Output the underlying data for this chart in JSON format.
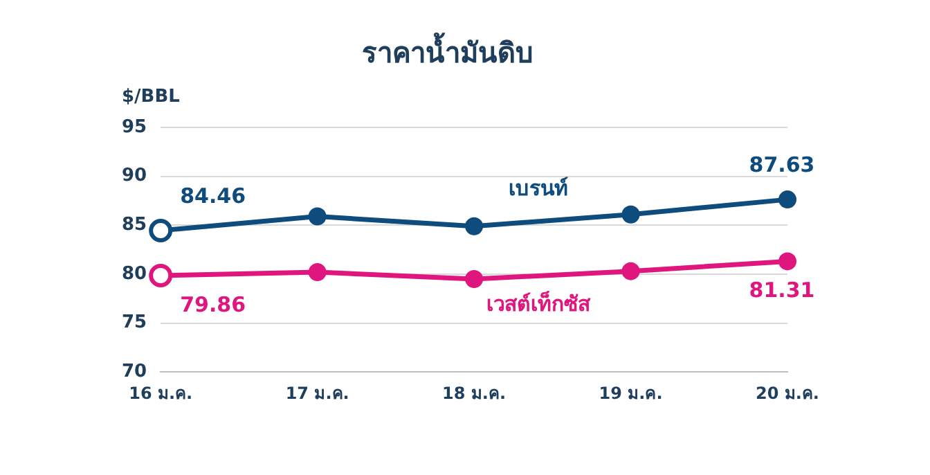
{
  "chart_data": {
    "type": "line",
    "title": "ราคาน้ำมันดิบ",
    "ylabel": "$/BBL",
    "categories": [
      "16 ม.ค.",
      "17 ม.ค.",
      "18 ม.ค.",
      "19 ม.ค.",
      "20 ม.ค."
    ],
    "series": [
      {
        "name": "เบรนท์",
        "color": "#0e4c7e",
        "values": [
          84.46,
          85.9,
          84.9,
          86.1,
          87.63
        ],
        "value_labels": [
          "84.46",
          null,
          null,
          null,
          "87.63"
        ]
      },
      {
        "name": "เวสต์เท็กซัส",
        "color": "#e0167f",
        "values": [
          79.86,
          80.2,
          79.5,
          80.3,
          81.31
        ],
        "value_labels": [
          "79.86",
          null,
          null,
          null,
          "81.31"
        ]
      }
    ],
    "ylim": [
      70,
      95
    ],
    "yticks": [
      70,
      75,
      80,
      85,
      90,
      95
    ],
    "grid": "y",
    "legend": false,
    "marker": "circle",
    "line_style": "solid"
  }
}
